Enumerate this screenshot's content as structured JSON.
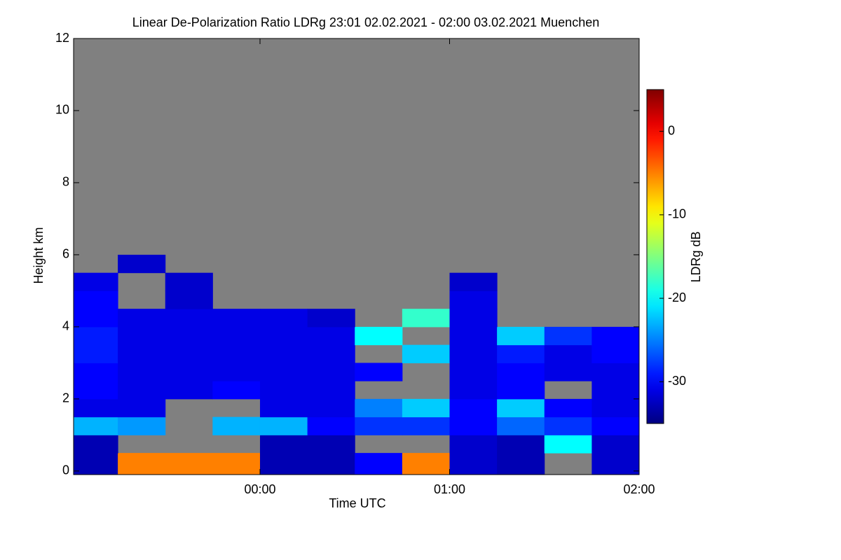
{
  "chart_data": {
    "type": "heatmap",
    "title": "Linear De-Polarization Ratio LDRg   23:01 02.02.2021 - 02:00 03.02.2021 Muenchen",
    "x_label": "Time UTC",
    "y_label": "Height km",
    "colorbar_label": "LDRg dB",
    "colormap": "jet",
    "background": "#808080",
    "xlim": [
      -0.9833,
      2.0
    ],
    "xticks": [
      {
        "value": 0,
        "label": "00:00"
      },
      {
        "value": 1,
        "label": "01:00"
      },
      {
        "value": 2,
        "label": "02:00"
      }
    ],
    "ylim": [
      -0.1,
      12
    ],
    "yticks": [
      0,
      2,
      4,
      6,
      8,
      10,
      12
    ],
    "zlim": [
      -35,
      5
    ],
    "zticks": [
      0,
      -10,
      -20,
      -30
    ],
    "x": [
      -0.875,
      -0.625,
      -0.375,
      -0.125,
      0.125,
      0.375,
      0.625,
      0.875,
      1.125,
      1.375,
      1.625,
      1.875
    ],
    "y": [
      0.25,
      0.75,
      1.25,
      1.75,
      2.25,
      2.75,
      3.25,
      3.75,
      4.25,
      4.75,
      5.25,
      5.75,
      6.25
    ],
    "z": [
      [
        -33,
        -5,
        -5,
        -5,
        -33,
        -33,
        -30,
        -5,
        -32,
        -33,
        null,
        -32
      ],
      [
        -33,
        null,
        null,
        null,
        -33,
        -33,
        null,
        null,
        -32,
        -33,
        -20,
        -32
      ],
      [
        -23,
        -24,
        null,
        -23,
        -23,
        -30,
        -28,
        -28,
        -30,
        -26,
        -28,
        -30
      ],
      [
        -31,
        -31,
        null,
        null,
        -31,
        -31,
        -25,
        -22,
        -30,
        -22,
        -30,
        -31
      ],
      [
        -30,
        -31,
        -31,
        -30,
        -31,
        -31,
        null,
        null,
        -31,
        -30,
        null,
        -31
      ],
      [
        -30,
        -31,
        -31,
        -31,
        -31,
        -31,
        -30,
        null,
        -31,
        -30,
        -31,
        -31
      ],
      [
        -29,
        -31,
        -31,
        -31,
        -31,
        -31,
        null,
        -22,
        -31,
        -29,
        -31,
        -30
      ],
      [
        -29,
        -31,
        -31,
        -31,
        -31,
        -31,
        -20,
        null,
        -31,
        -22,
        -28,
        -30
      ],
      [
        -30,
        -31,
        -31,
        -31,
        -31,
        -32,
        null,
        -18,
        -31,
        null,
        null,
        null
      ],
      [
        -30,
        null,
        -32,
        null,
        null,
        null,
        null,
        null,
        -31,
        null,
        null,
        null
      ],
      [
        -31,
        null,
        -32,
        null,
        null,
        null,
        null,
        null,
        -32,
        null,
        null,
        null
      ],
      [
        null,
        -32,
        null,
        null,
        null,
        null,
        null,
        null,
        null,
        null,
        null,
        null
      ],
      [
        null,
        null,
        null,
        null,
        null,
        null,
        null,
        null,
        null,
        null,
        null,
        null
      ]
    ]
  }
}
